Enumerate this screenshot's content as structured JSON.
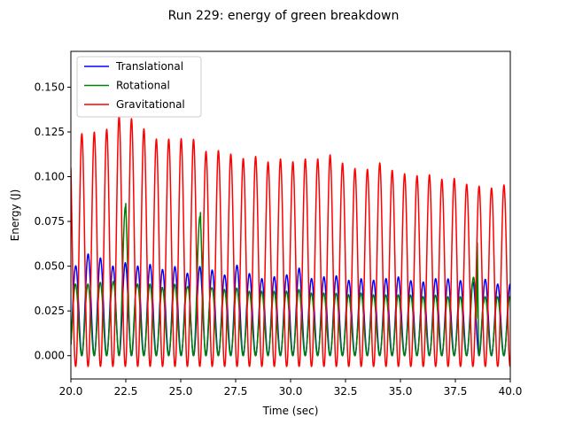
{
  "chart_data": {
    "type": "line",
    "title": "Run 229: energy of green breakdown",
    "xlabel": "Time (sec)",
    "ylabel": "Energy (J)",
    "xlim": [
      20.0,
      40.0
    ],
    "ylim": [
      -0.013,
      0.17
    ],
    "xticks": [
      "20.0",
      "22.5",
      "25.0",
      "27.5",
      "30.0",
      "32.5",
      "35.0",
      "37.5",
      "40.0"
    ],
    "yticks": [
      "0.000",
      "0.025",
      "0.050",
      "0.075",
      "0.100",
      "0.125",
      "0.150"
    ],
    "grid": false,
    "legend_position": "top-left",
    "oscillation_period_sec": 0.565,
    "series": [
      {
        "name": "Translational",
        "color": "#0000ff",
        "description": "oscillates between ~0.0 and ~0.05 J at twice the swing frequency",
        "peaks": [
          [
            20.2,
            0.05
          ],
          [
            20.8,
            0.057
          ],
          [
            21.3,
            0.055
          ],
          [
            21.9,
            0.05
          ],
          [
            22.5,
            0.052
          ],
          [
            23.0,
            0.05
          ],
          [
            23.6,
            0.051
          ],
          [
            24.2,
            0.048
          ],
          [
            24.7,
            0.05
          ],
          [
            25.3,
            0.046
          ],
          [
            25.9,
            0.05
          ],
          [
            26.4,
            0.048
          ],
          [
            27.0,
            0.045
          ],
          [
            27.5,
            0.051
          ],
          [
            28.1,
            0.046
          ],
          [
            28.7,
            0.043
          ],
          [
            29.2,
            0.044
          ],
          [
            29.8,
            0.045
          ],
          [
            30.4,
            0.049
          ],
          [
            30.9,
            0.043
          ],
          [
            31.5,
            0.044
          ],
          [
            32.0,
            0.045
          ],
          [
            32.6,
            0.042
          ],
          [
            33.2,
            0.043
          ],
          [
            33.7,
            0.042
          ],
          [
            34.3,
            0.043
          ],
          [
            34.9,
            0.044
          ],
          [
            35.4,
            0.042
          ],
          [
            36.0,
            0.041
          ],
          [
            36.5,
            0.043
          ],
          [
            37.1,
            0.043
          ],
          [
            37.7,
            0.042
          ],
          [
            38.2,
            0.041
          ],
          [
            38.8,
            0.043
          ],
          [
            39.3,
            0.04
          ],
          [
            39.9,
            0.04
          ]
        ]
      },
      {
        "name": "Rotational",
        "color": "#008000",
        "description": "oscillates between ~0.0 and ~0.04 J with occasional spikes",
        "peaks": [
          [
            20.2,
            0.04
          ],
          [
            20.8,
            0.04
          ],
          [
            21.3,
            0.041
          ],
          [
            21.9,
            0.04
          ],
          [
            22.5,
            0.085
          ],
          [
            23.0,
            0.04
          ],
          [
            23.6,
            0.04
          ],
          [
            24.2,
            0.038
          ],
          [
            24.7,
            0.04
          ],
          [
            25.3,
            0.038
          ],
          [
            25.9,
            0.08
          ],
          [
            26.4,
            0.038
          ],
          [
            27.0,
            0.037
          ],
          [
            27.5,
            0.038
          ],
          [
            28.1,
            0.036
          ],
          [
            28.7,
            0.036
          ],
          [
            29.2,
            0.036
          ],
          [
            29.8,
            0.036
          ],
          [
            30.4,
            0.037
          ],
          [
            30.9,
            0.035
          ],
          [
            31.5,
            0.035
          ],
          [
            32.0,
            0.035
          ],
          [
            32.6,
            0.034
          ],
          [
            33.2,
            0.035
          ],
          [
            33.7,
            0.034
          ],
          [
            34.3,
            0.034
          ],
          [
            34.9,
            0.034
          ],
          [
            35.4,
            0.034
          ],
          [
            36.0,
            0.033
          ],
          [
            36.5,
            0.034
          ],
          [
            37.1,
            0.033
          ],
          [
            37.7,
            0.033
          ],
          [
            38.2,
            0.033
          ],
          [
            38.5,
            0.063
          ],
          [
            38.8,
            0.033
          ],
          [
            39.3,
            0.033
          ],
          [
            39.9,
            0.033
          ]
        ]
      },
      {
        "name": "Gravitational",
        "color": "#ff0000",
        "description": "large oscillation whose peak energy decays from ~0.13 J to ~0.09 J",
        "peaks": [
          [
            20.5,
            0.124
          ],
          [
            21.1,
            0.125
          ],
          [
            21.6,
            0.126
          ],
          [
            22.1,
            0.134
          ],
          [
            22.7,
            0.133
          ],
          [
            23.3,
            0.127
          ],
          [
            23.8,
            0.121
          ],
          [
            24.4,
            0.121
          ],
          [
            24.9,
            0.121
          ],
          [
            25.5,
            0.122
          ],
          [
            26.1,
            0.114
          ],
          [
            26.6,
            0.115
          ],
          [
            27.2,
            0.113
          ],
          [
            27.8,
            0.11
          ],
          [
            28.3,
            0.112
          ],
          [
            28.9,
            0.108
          ],
          [
            29.5,
            0.11
          ],
          [
            30.0,
            0.108
          ],
          [
            30.6,
            0.11
          ],
          [
            31.1,
            0.109
          ],
          [
            31.7,
            0.113
          ],
          [
            32.3,
            0.108
          ],
          [
            32.8,
            0.105
          ],
          [
            33.4,
            0.103
          ],
          [
            33.9,
            0.109
          ],
          [
            34.5,
            0.104
          ],
          [
            35.1,
            0.102
          ],
          [
            35.6,
            0.1
          ],
          [
            36.2,
            0.102
          ],
          [
            36.7,
            0.098
          ],
          [
            37.3,
            0.1
          ],
          [
            37.9,
            0.096
          ],
          [
            38.4,
            0.095
          ],
          [
            39.0,
            0.094
          ],
          [
            39.5,
            0.093
          ],
          [
            39.95,
            0.098
          ]
        ],
        "troughs_min": -0.006
      }
    ]
  }
}
